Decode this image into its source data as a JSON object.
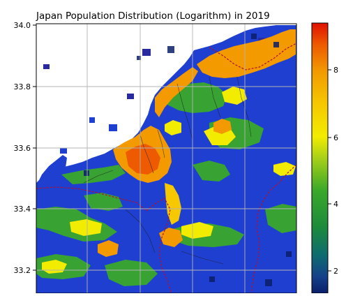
{
  "title": "Japan Population Distribution (Logarithm) in 2019",
  "map": {
    "y_tick_labels": [
      "34.0",
      "33.8",
      "33.6",
      "33.4",
      "33.2"
    ],
    "y_ticks": [
      34.0,
      33.8,
      33.6,
      33.4,
      33.2
    ],
    "lat_range_visible": [
      33.15,
      34.0
    ],
    "gridlines": true,
    "sea_color": "#ffffff",
    "grid_color": "#b4b4b4",
    "prefecture_border_color": "#b01030",
    "municipal_border_color": "#202020"
  },
  "colorbar": {
    "colormap": "jet-like (navy, blue, green, yellow, orange, red)",
    "tick_labels": [
      "8",
      "6",
      "4",
      "2"
    ],
    "ticks": [
      8,
      6,
      4,
      2
    ],
    "range": [
      1.5,
      9.5
    ],
    "colors": [
      "#1a2a8a",
      "#1f4fd6",
      "#3aa23a",
      "#7cc31e",
      "#f0e800",
      "#f4a800",
      "#f07c10",
      "#e03010"
    ]
  }
}
